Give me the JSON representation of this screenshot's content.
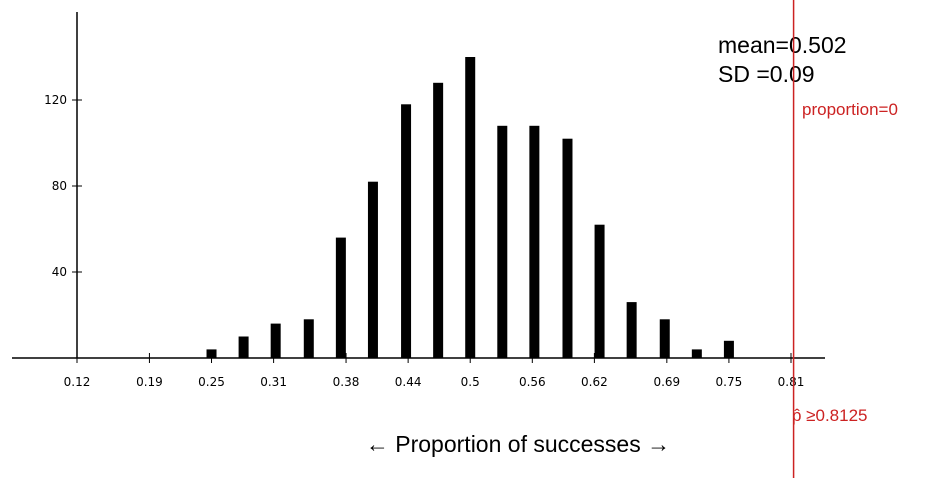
{
  "chart_data": {
    "type": "bar",
    "xlabel": "← Proportion of successes →",
    "ylabel": "",
    "x_ticks": [
      0.12,
      0.19,
      0.25,
      0.31,
      0.38,
      0.44,
      0.5,
      0.56,
      0.62,
      0.69,
      0.75,
      0.81
    ],
    "y_ticks": [
      40,
      80,
      120
    ],
    "ylim": [
      0,
      150
    ],
    "bars": [
      {
        "x": 0.25,
        "value": 4
      },
      {
        "x": 0.281,
        "value": 10
      },
      {
        "x": 0.312,
        "value": 16
      },
      {
        "x": 0.344,
        "value": 18
      },
      {
        "x": 0.375,
        "value": 56
      },
      {
        "x": 0.406,
        "value": 82
      },
      {
        "x": 0.438,
        "value": 118
      },
      {
        "x": 0.469,
        "value": 128
      },
      {
        "x": 0.5,
        "value": 140
      },
      {
        "x": 0.531,
        "value": 108
      },
      {
        "x": 0.562,
        "value": 108
      },
      {
        "x": 0.594,
        "value": 102
      },
      {
        "x": 0.625,
        "value": 62
      },
      {
        "x": 0.656,
        "value": 26
      },
      {
        "x": 0.688,
        "value": 18
      },
      {
        "x": 0.719,
        "value": 4
      },
      {
        "x": 0.75,
        "value": 8
      }
    ],
    "stats": {
      "mean_text": "mean=0.502",
      "sd_text": "SD =0.09"
    },
    "reference_line": {
      "x": 0.8125,
      "label_top": "proportion=0",
      "label_bottom": "p̂ ≥0.8125",
      "color": "#cc2222"
    },
    "bar_color": "#000000"
  }
}
